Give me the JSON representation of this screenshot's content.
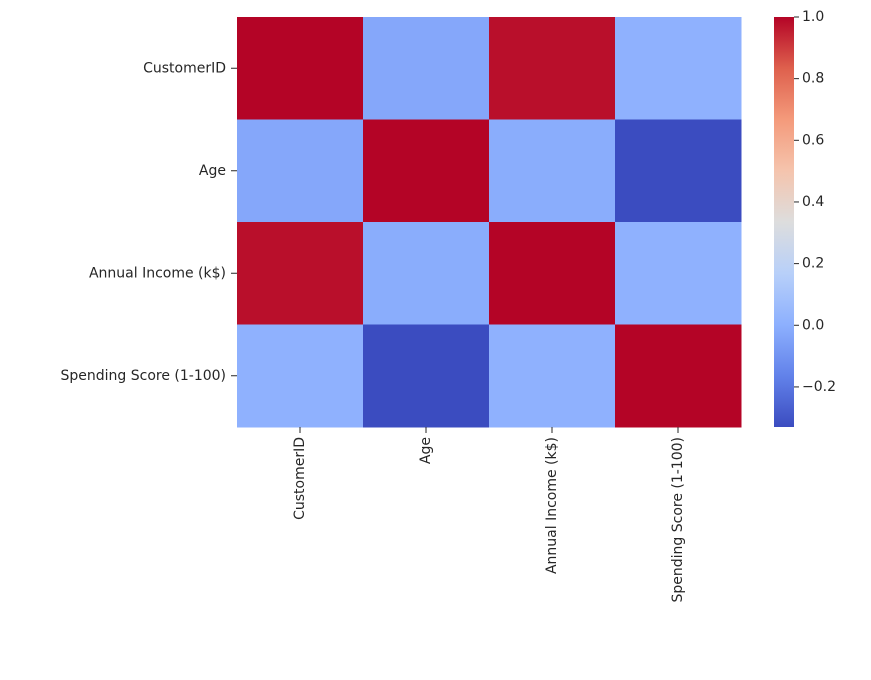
{
  "chart_data": {
    "type": "heatmap",
    "title": "",
    "xlabel": "",
    "ylabel": "",
    "rows": [
      "CustomerID",
      "Age",
      "Annual Income (k$)",
      "Spending Score (1-100)"
    ],
    "columns": [
      "CustomerID",
      "Age",
      "Annual Income (k$)",
      "Spending Score (1-100)"
    ],
    "values": [
      [
        1.0,
        -0.03,
        0.98,
        0.01
      ],
      [
        -0.03,
        1.0,
        -0.01,
        -0.33
      ],
      [
        0.98,
        -0.01,
        1.0,
        0.01
      ],
      [
        0.01,
        -0.33,
        0.01,
        1.0
      ]
    ],
    "colorbar": {
      "colormap": "coolwarm",
      "vmin": -0.33,
      "vmax": 1.0,
      "ticks": [
        1.0,
        0.8,
        0.6,
        0.4,
        0.2,
        0.0,
        -0.2
      ],
      "tick_labels": [
        "1.0",
        "0.8",
        "0.6",
        "0.4",
        "0.2",
        "0.0",
        "−0.2"
      ]
    },
    "grid": false,
    "legend": "colorbar-right"
  }
}
